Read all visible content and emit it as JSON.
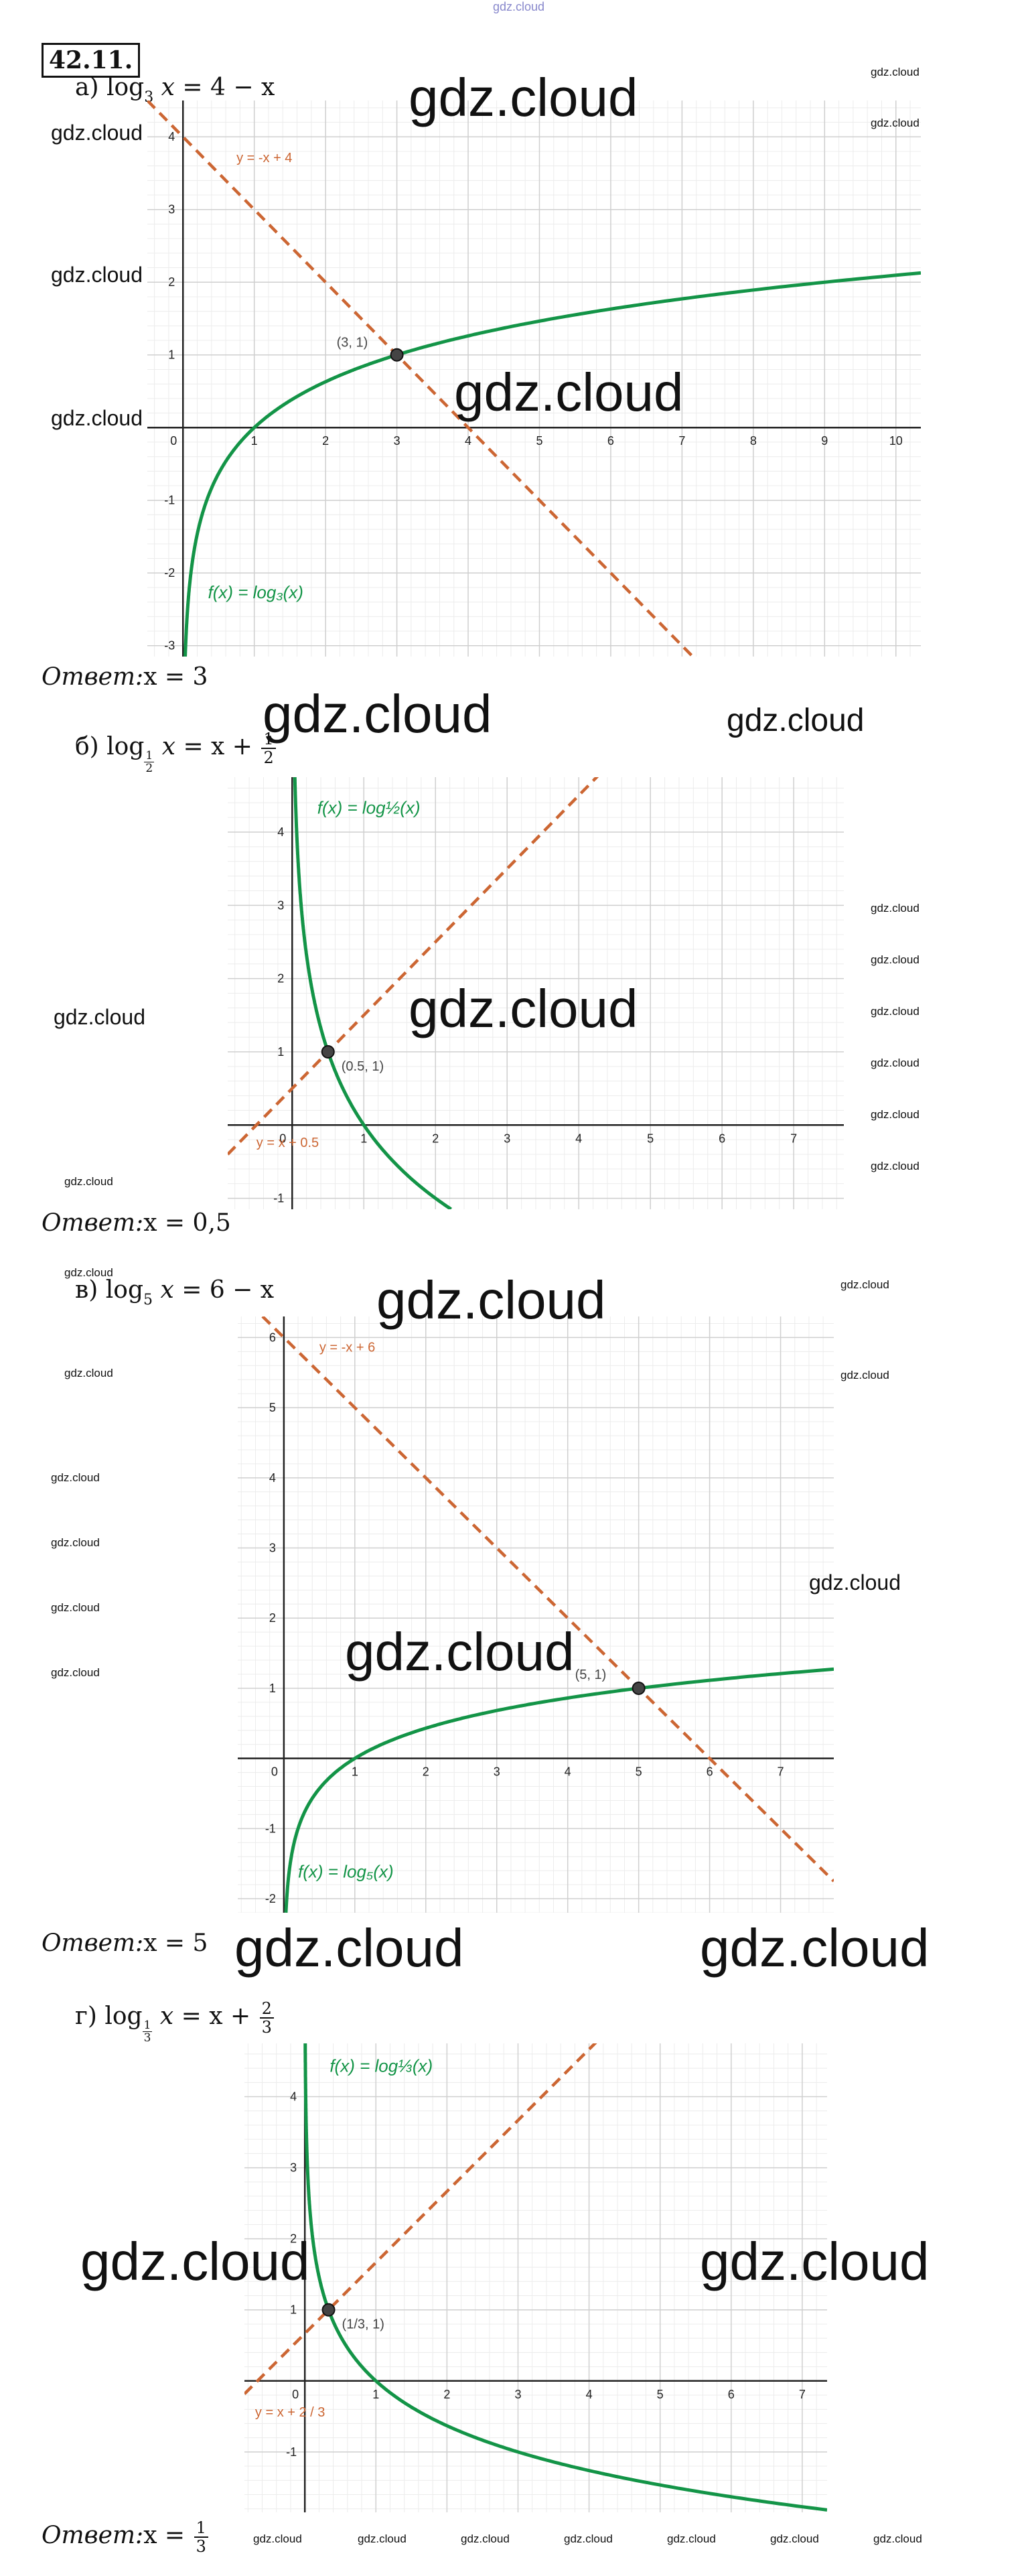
{
  "header": {
    "number": "42.11."
  },
  "watermarks": {
    "top": "gdz.cloud",
    "text": "gdz.cloud"
  },
  "problems": [
    {
      "id": "a",
      "label": "а)",
      "equation": {
        "base": "3",
        "rhs": "= 4 − x"
      },
      "answer": {
        "label": "Ответ:",
        "value": "x = 3"
      }
    },
    {
      "id": "b",
      "label": "б)",
      "equation": {
        "base_num": "1",
        "base_den": "2",
        "rhs_a": "= x +",
        "rhs_num": "1",
        "rhs_den": "2"
      },
      "answer": {
        "label": "Ответ:",
        "value": "x = 0,5"
      }
    },
    {
      "id": "c",
      "label": "в)",
      "equation": {
        "base": "5",
        "rhs": "= 6 − x"
      },
      "answer": {
        "label": "Ответ:",
        "value": "x = 5"
      }
    },
    {
      "id": "d",
      "label": "г)",
      "equation": {
        "base_num": "1",
        "base_den": "3",
        "rhs_a": "= x +",
        "rhs_num": "2",
        "rhs_den": "3"
      },
      "answer": {
        "label": "Ответ:",
        "value_a": "x =",
        "value_num": "1",
        "value_den": "3"
      }
    }
  ],
  "chart_data": [
    {
      "type": "line",
      "xlim": [
        -0.5,
        10.35
      ],
      "ylim": [
        -3.15,
        4.5
      ],
      "grid": true,
      "colors": {
        "curve": "#139447",
        "line": "#cc6633",
        "grid": "#cfcfcf",
        "minor": "#ececec"
      },
      "x_ticks": [
        "0",
        "1",
        "2",
        "3",
        "4",
        "5",
        "6",
        "7",
        "8",
        "9",
        "10"
      ],
      "y_ticks": [
        "-3",
        "-2",
        "-1",
        "1",
        "2",
        "3",
        "4"
      ],
      "series": [
        {
          "name": "f(x) = log₃(x)",
          "kind": "log",
          "base": 3
        },
        {
          "name": "y = -x + 4",
          "kind": "linear",
          "slope": -1,
          "intercept": 4
        }
      ],
      "point": {
        "x": 3,
        "y": 1,
        "label": "(3, 1)"
      }
    },
    {
      "type": "line",
      "xlim": [
        -0.9,
        7.7
      ],
      "ylim": [
        -1.15,
        4.75
      ],
      "grid": true,
      "colors": {
        "curve": "#139447",
        "line": "#cc6633",
        "grid": "#cfcfcf",
        "minor": "#ececec"
      },
      "x_ticks": [
        "0",
        "1",
        "2",
        "3",
        "4",
        "5",
        "6",
        "7"
      ],
      "y_ticks": [
        "-1",
        "1",
        "2",
        "3",
        "4"
      ],
      "series": [
        {
          "name": "f(x) = log½(x)",
          "kind": "log",
          "base": 0.5
        },
        {
          "name": "y = x + 0.5",
          "kind": "linear",
          "slope": 1,
          "intercept": 0.5
        }
      ],
      "point": {
        "x": 0.5,
        "y": 1,
        "label": "(0.5, 1)"
      }
    },
    {
      "type": "line",
      "xlim": [
        -0.65,
        7.75
      ],
      "ylim": [
        -2.2,
        6.3
      ],
      "grid": true,
      "colors": {
        "curve": "#139447",
        "line": "#cc6633",
        "grid": "#cfcfcf",
        "minor": "#ececec"
      },
      "x_ticks": [
        "0",
        "1",
        "2",
        "3",
        "4",
        "5",
        "6",
        "7"
      ],
      "y_ticks": [
        "-2",
        "-1",
        "1",
        "2",
        "3",
        "4",
        "5",
        "6"
      ],
      "series": [
        {
          "name": "f(x) = log₅(x)",
          "kind": "log",
          "base": 5
        },
        {
          "name": "y = -x + 6",
          "kind": "linear",
          "slope": -1,
          "intercept": 6
        }
      ],
      "point": {
        "x": 5,
        "y": 1,
        "label": "(5, 1)"
      }
    },
    {
      "type": "line",
      "xlim": [
        -0.85,
        7.35
      ],
      "ylim": [
        -1.85,
        4.75
      ],
      "grid": true,
      "colors": {
        "curve": "#139447",
        "line": "#cc6633",
        "grid": "#cfcfcf",
        "minor": "#ececec"
      },
      "x_ticks": [
        "0",
        "1",
        "2",
        "3",
        "4",
        "5",
        "6",
        "7"
      ],
      "y_ticks": [
        "-1",
        "1",
        "2",
        "3",
        "4"
      ],
      "series": [
        {
          "name": "f(x) = log⅓(x)",
          "kind": "log",
          "base": 0.3333333
        },
        {
          "name": "y = x + 2 / 3",
          "kind": "linear",
          "slope": 1,
          "intercept": 0.6666667
        }
      ],
      "point": {
        "x": 0.3333,
        "y": 1,
        "label": "(1/3,  1)"
      }
    }
  ]
}
